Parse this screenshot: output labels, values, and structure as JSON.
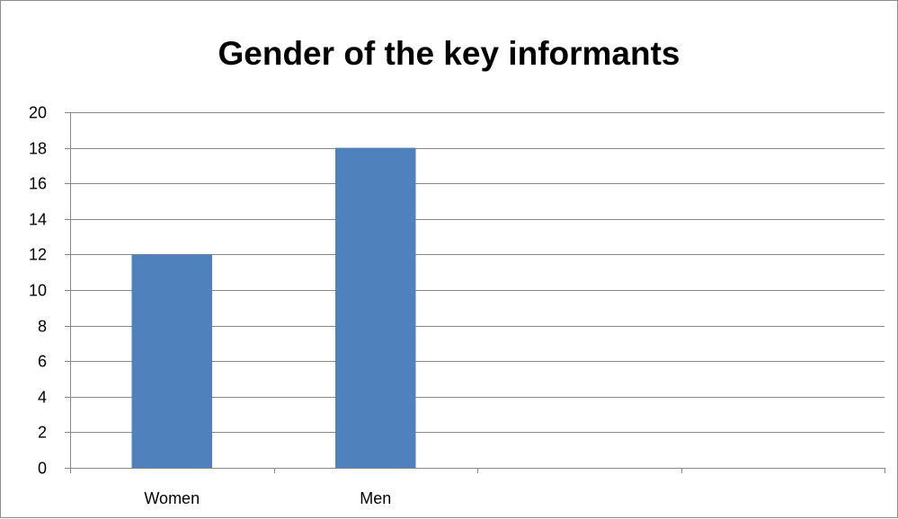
{
  "chart_data": {
    "type": "bar",
    "title": "Gender of the key informants",
    "categories": [
      "Women",
      "Men",
      "",
      ""
    ],
    "values": [
      12,
      18,
      null,
      null
    ],
    "ylim": [
      0,
      20
    ],
    "ytick_step": 2,
    "grid": true,
    "legend": "none",
    "bar_color": "#4F81BD",
    "grid_color": "#868686"
  }
}
